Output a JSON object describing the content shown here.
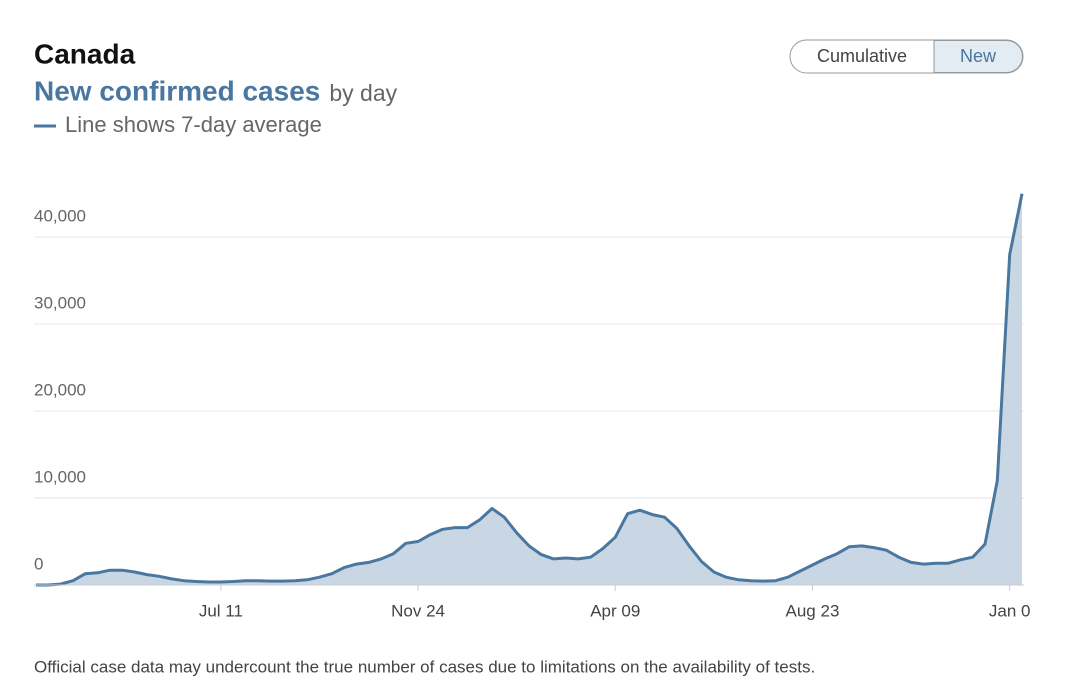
{
  "chart_data": {
    "type": "area",
    "title": "Canada",
    "subtitle": "New confirmed cases",
    "subtitle_suffix": "by day",
    "legend": "Line shows 7-day average",
    "buttons": [
      "Cumulative",
      "New"
    ],
    "note": "Official case data may undercount the true number of cases due to limitations on the availability of tests.",
    "categories": [
      null,
      null,
      null,
      null,
      null,
      null,
      null,
      null,
      null,
      null,
      null,
      null,
      null,
      null,
      null,
      "Jul 11",
      null,
      null,
      null,
      null,
      null,
      null,
      null,
      null,
      null,
      null,
      null,
      null,
      null,
      null,
      null,
      "Nov 24",
      null,
      null,
      null,
      null,
      null,
      null,
      null,
      null,
      null,
      null,
      null,
      null,
      null,
      null,
      null,
      "Apr 09",
      null,
      null,
      null,
      null,
      null,
      null,
      null,
      null,
      null,
      null,
      null,
      null,
      null,
      null,
      null,
      "Aug 23",
      null,
      null,
      null,
      null,
      null,
      null,
      null,
      null,
      null,
      null,
      null,
      null,
      null,
      null,
      null,
      "Jan 0",
      null
    ],
    "values": [
      0,
      0,
      100,
      500,
      1300,
      1400,
      1700,
      1700,
      1500,
      1200,
      1000,
      700,
      500,
      400,
      350,
      350,
      400,
      500,
      500,
      450,
      450,
      500,
      600,
      900,
      1300,
      2000,
      2400,
      2600,
      3000,
      3600,
      4800,
      5000,
      5800,
      6400,
      6600,
      6600,
      7500,
      8800,
      7800,
      6000,
      4500,
      3500,
      3000,
      3100,
      3000,
      3200,
      4200,
      5500,
      8200,
      8600,
      8100,
      7800,
      6500,
      4500,
      2700,
      1500,
      900,
      600,
      500,
      450,
      500,
      900,
      1600,
      2300,
      3000,
      3600,
      4400,
      4500,
      4300,
      4000,
      3200,
      2600,
      2400,
      2500,
      2500,
      2900,
      3200,
      4700,
      12000,
      38000,
      45000
    ],
    "color": "#4a77a0",
    "fill": "#c9d6e3",
    "ylim": [
      0,
      46000
    ],
    "yticks": [
      0,
      {
        "value": 10000,
        "label": "10,000"
      },
      {
        "value": 20000,
        "label": "20,000"
      },
      {
        "value": 30000,
        "label": "30,000"
      },
      {
        "value": 40000,
        "label": "40,000"
      }
    ],
    "grid": true
  }
}
